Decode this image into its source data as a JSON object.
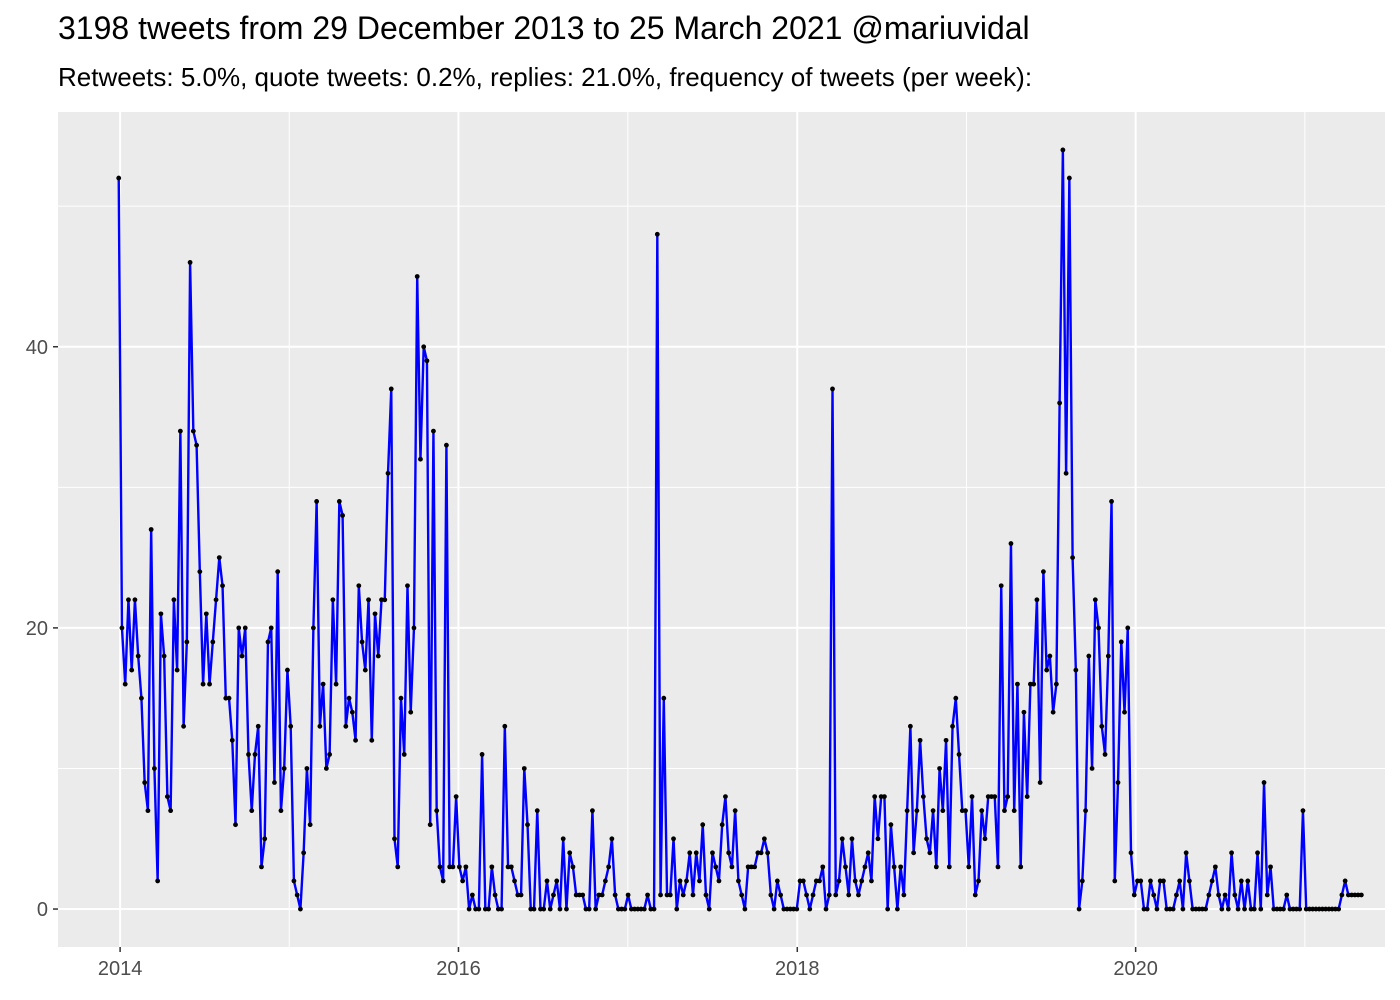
{
  "chart_data": {
    "type": "line",
    "title": "3198 tweets from 29 December 2013 to 25 March 2021 @mariuvidal",
    "subtitle": "Retweets: 5.0%, quote tweets: 0.2%, replies: 21.0%, frequency of tweets (per week):",
    "xlabel": "",
    "ylabel": "",
    "x_ticks": [
      "2014",
      "2016",
      "2018",
      "2020"
    ],
    "y_ticks": [
      0,
      20,
      40
    ],
    "xlim": [
      "2013-08-20",
      "2021-06-22"
    ],
    "ylim": [
      -2.7,
      56.7
    ],
    "grid": true,
    "legend": "none",
    "colors": {
      "line": "#0000ff",
      "point": "#000000",
      "panel": "#ebebeb",
      "grid": "#ffffff"
    },
    "series": [
      {
        "x_start": "2013-12-29",
        "interval_days": 7,
        "values": [
          52,
          20,
          16,
          22,
          17,
          22,
          18,
          15,
          9,
          7,
          27,
          10,
          2,
          21,
          18,
          8,
          7,
          22,
          17,
          34,
          13,
          19,
          46,
          34,
          33,
          24,
          16,
          21,
          16,
          19,
          22,
          25,
          23,
          15,
          15,
          12,
          6,
          20,
          18,
          20,
          11,
          7,
          11,
          13,
          3,
          5,
          19,
          20,
          9,
          24,
          7,
          10,
          17,
          13,
          2,
          1,
          0,
          4,
          10,
          6,
          20,
          29,
          13,
          16,
          10,
          11,
          22,
          16,
          29,
          28,
          13,
          15,
          14,
          12,
          23,
          19,
          17,
          22,
          12,
          21,
          18,
          22,
          22,
          31,
          37,
          5,
          3,
          15,
          11,
          23,
          14,
          20,
          45,
          32,
          40,
          39,
          6,
          34,
          7,
          3,
          2,
          33,
          3,
          3,
          8,
          3,
          2,
          3,
          0,
          1,
          0,
          0,
          11,
          0,
          0,
          3,
          1,
          0,
          0,
          13,
          3,
          3,
          2,
          1,
          1,
          10,
          6,
          0,
          0,
          7,
          0,
          0,
          2,
          0,
          1,
          2,
          0,
          5,
          0,
          4,
          3,
          1,
          1,
          1,
          0,
          0,
          7,
          0,
          1,
          1,
          2,
          3,
          5,
          1,
          0,
          0,
          0,
          1,
          0,
          0,
          0,
          0,
          0,
          1,
          0,
          0,
          48,
          1,
          15,
          1,
          1,
          5,
          0,
          2,
          1,
          2,
          4,
          1,
          4,
          2,
          6,
          1,
          0,
          4,
          3,
          2,
          6,
          8,
          4,
          3,
          7,
          2,
          1,
          0,
          3,
          3,
          3,
          4,
          4,
          5,
          4,
          1,
          0,
          2,
          1,
          0,
          0,
          0,
          0,
          0,
          2,
          2,
          1,
          0,
          1,
          2,
          2,
          3,
          0,
          1,
          37,
          1,
          2,
          5,
          3,
          1,
          5,
          2,
          1,
          2,
          3,
          4,
          2,
          8,
          5,
          8,
          8,
          0,
          6,
          3,
          0,
          3,
          1,
          7,
          13,
          4,
          7,
          12,
          8,
          5,
          4,
          7,
          3,
          10,
          7,
          12,
          3,
          13,
          15,
          11,
          7,
          7,
          3,
          8,
          1,
          2,
          7,
          5,
          8,
          8,
          8,
          3,
          23,
          7,
          8,
          26,
          7,
          16,
          3,
          14,
          8,
          16,
          16,
          22,
          9,
          24,
          17,
          18,
          14,
          16,
          36,
          54,
          31,
          52,
          25,
          17,
          0,
          2,
          7,
          18,
          10,
          22,
          20,
          13,
          11,
          18,
          29,
          2,
          9,
          19,
          14,
          20,
          4,
          1,
          2,
          2,
          0,
          0,
          2,
          1,
          0,
          2,
          2,
          0,
          0,
          0,
          1,
          2,
          0,
          4,
          2,
          0,
          0,
          0,
          0,
          0,
          1,
          2,
          3,
          1,
          0,
          1,
          0,
          4,
          1,
          0,
          2,
          0,
          2,
          0,
          0,
          4,
          0,
          9,
          1,
          3,
          0,
          0,
          0,
          0,
          1,
          0,
          0,
          0,
          0,
          7,
          0,
          0,
          0,
          0,
          0,
          0,
          0,
          0,
          0,
          0,
          0,
          1,
          2,
          1,
          1,
          1,
          1,
          1
        ]
      }
    ]
  }
}
